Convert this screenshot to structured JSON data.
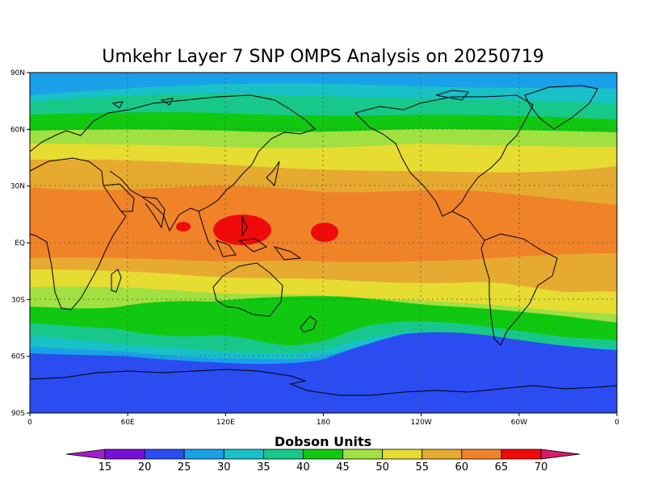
{
  "title": "Umkehr Layer 7 SNP OMPS Analysis on 20250719",
  "map": {
    "lat_ticks": [
      "90N",
      "60N",
      "30N",
      "EQ",
      "30S",
      "60S",
      "90S"
    ],
    "lon_ticks": [
      "0",
      "60E",
      "120E",
      "180",
      "120W",
      "60W",
      "0"
    ],
    "lat_values": [
      90,
      60,
      30,
      0,
      -30,
      -60,
      -90
    ],
    "lon_values": [
      0,
      60,
      120,
      180,
      240,
      300,
      360
    ]
  },
  "colorbar": {
    "title": "Dobson Units",
    "labels": [
      "15",
      "20",
      "25",
      "30",
      "35",
      "40",
      "45",
      "50",
      "55",
      "60",
      "65",
      "70"
    ],
    "colors": [
      "#a020c8",
      "#7a10d8",
      "#2a4cf0",
      "#1aa0e8",
      "#18c0c8",
      "#18c88a",
      "#10c810",
      "#a0e040",
      "#e6dc32",
      "#e6aa30",
      "#f08228",
      "#f00a0a",
      "#d8186a"
    ]
  },
  "legend_colors": {
    "band_20": "#2a4cf0",
    "band_25": "#1aa0e8",
    "band_30": "#18c0c8",
    "band_35": "#18c88a",
    "band_40": "#10c810",
    "band_45": "#a0e040",
    "band_50": "#e6dc32",
    "band_55": "#e6aa30",
    "band_60": "#f08228",
    "band_65": "#f00a0a"
  }
}
